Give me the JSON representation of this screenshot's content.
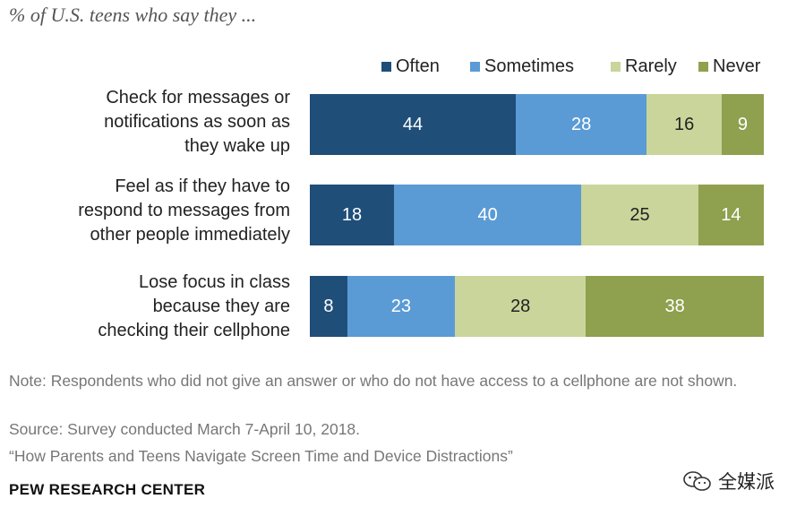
{
  "header": {
    "subtitle": "% of U.S. teens who say they ..."
  },
  "colors": {
    "Often": "#1f4e79",
    "Sometimes": "#5b9bd5",
    "Rarely": "#c9d59a",
    "Never": "#8fa04e"
  },
  "chart_data": {
    "type": "bar",
    "orientation": "horizontal",
    "stacked": true,
    "legend_position": "top-right",
    "categories": [
      "Check for messages or\nnotifications as soon as\nthey wake up",
      "Feel as if they have to\nrespond to messages from\nother people immediately",
      "Lose focus in class\nbecause they are\nchecking their cellphone"
    ],
    "series": [
      {
        "name": "Often",
        "values": [
          44,
          18,
          8
        ]
      },
      {
        "name": "Sometimes",
        "values": [
          28,
          40,
          23
        ]
      },
      {
        "name": "Rarely",
        "values": [
          16,
          25,
          28
        ]
      },
      {
        "name": "Never",
        "values": [
          9,
          14,
          38
        ]
      }
    ]
  },
  "footer": {
    "note": "Note: Respondents who did not give an answer or who do not have access to a cellphone are not shown.",
    "source": "Source: Survey conducted March 7-April 10, 2018.",
    "report": "“How Parents and Teens Navigate Screen Time and Device Distractions”",
    "org": "PEW RESEARCH CENTER",
    "watermark": "全媒派"
  }
}
